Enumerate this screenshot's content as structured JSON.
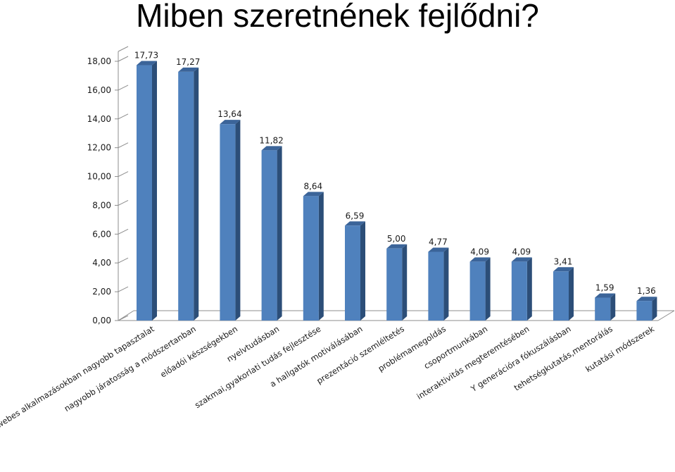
{
  "page": {
    "title": "Miben szeretnének fejlődni?"
  },
  "colors": {
    "bar_front": "#4f81bd",
    "bar_side": "#2c4e78",
    "bar_top": "#3b6499",
    "axis": "#8c8c8c",
    "text": "#1a1a1a"
  },
  "chart_data": {
    "type": "bar",
    "title": "",
    "xlabel": "",
    "ylabel": "",
    "ylim": [
      0,
      18
    ],
    "ytick_step": 2,
    "grid": false,
    "legend": "none",
    "style": "3d-column",
    "yticks": [
      "0,00",
      "2,00",
      "4,00",
      "6,00",
      "8,00",
      "10,00",
      "12,00",
      "14,00",
      "16,00",
      "18,00"
    ],
    "categories": [
      "IKT, webes alkalmazásokban nagyobb tapasztalat",
      "nagyobb járatosság a módszertanban",
      "előadói készségekben",
      "nyelvtudásban",
      "szakmai,gyakorlati tudás fejlesztése",
      "a hallgatók motiválásában",
      "prezentáció szemléltetés",
      "problémamegoldás",
      "csoportmunkában",
      "interaktivitás megteremtésében",
      "Y generációra fókuszálásban",
      "tehetségkutatás,mentorálás",
      "kutatási módszerek"
    ],
    "values": [
      17.73,
      17.27,
      13.64,
      11.82,
      8.64,
      6.59,
      5.0,
      4.77,
      4.09,
      4.09,
      3.41,
      1.59,
      1.36
    ],
    "data_labels": [
      "17,73",
      "17,27",
      "13,64",
      "11,82",
      "8,64",
      "6,59",
      "5,00",
      "4,77",
      "4,09",
      "4,09",
      "3,41",
      "1,59",
      "1,36"
    ]
  }
}
